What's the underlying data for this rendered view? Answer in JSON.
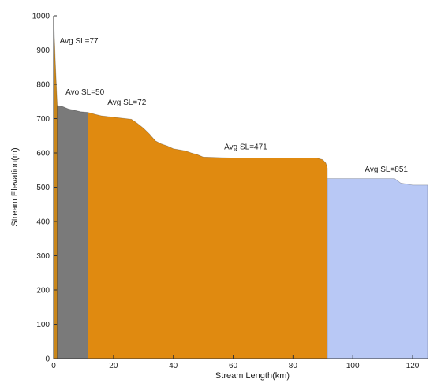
{
  "chart_data": {
    "type": "area",
    "xlabel": "Stream Length(km)",
    "ylabel": "Stream Elevation(m)",
    "xlim": [
      0,
      125
    ],
    "ylim": [
      0,
      1000
    ],
    "x_ticks": [
      0,
      20,
      40,
      60,
      80,
      100,
      120
    ],
    "y_ticks": [
      0,
      100,
      200,
      300,
      400,
      500,
      600,
      700,
      800,
      900,
      1000
    ],
    "grid": false,
    "colors": {
      "segment_1": "#c9861a",
      "segment_2": "#7a7a7a",
      "segment_3": "#e08a10",
      "segment_4": "#b8c8f5",
      "axis": "#333333"
    },
    "segments": [
      {
        "color_key": "segment_1",
        "points": [
          [
            0,
            1000
          ],
          [
            0.3,
            930
          ],
          [
            0.6,
            860
          ],
          [
            0.9,
            800
          ],
          [
            1.2,
            740
          ]
        ]
      },
      {
        "color_key": "segment_2",
        "points": [
          [
            1.2,
            738
          ],
          [
            3,
            735
          ],
          [
            5,
            728
          ],
          [
            7,
            724
          ],
          [
            9,
            720
          ],
          [
            11.5,
            718
          ]
        ]
      },
      {
        "color_key": "segment_3",
        "points": [
          [
            11.5,
            718
          ],
          [
            14,
            712
          ],
          [
            16,
            708
          ],
          [
            18,
            706
          ],
          [
            22,
            702
          ],
          [
            26,
            698
          ],
          [
            28,
            686
          ],
          [
            30,
            672
          ],
          [
            32,
            655
          ],
          [
            34,
            635
          ],
          [
            36,
            626
          ],
          [
            38,
            620
          ],
          [
            40,
            612
          ],
          [
            44,
            606
          ],
          [
            46,
            600
          ],
          [
            48,
            595
          ],
          [
            50,
            588
          ],
          [
            60,
            585
          ],
          [
            70,
            585
          ],
          [
            80,
            585
          ],
          [
            88,
            585
          ],
          [
            90,
            580
          ],
          [
            91,
            570
          ],
          [
            91.5,
            555
          ]
        ]
      },
      {
        "color_key": "segment_4",
        "points": [
          [
            91.5,
            525
          ],
          [
            100,
            525
          ],
          [
            114,
            525
          ],
          [
            116,
            512
          ],
          [
            120,
            506
          ],
          [
            125,
            506
          ]
        ]
      }
    ],
    "annotations": [
      {
        "text": "Avg SL=77",
        "x": 2,
        "y": 920
      },
      {
        "text": "Avo SL=50",
        "x": 4,
        "y": 770
      },
      {
        "text": "Avg SL=72",
        "x": 18,
        "y": 740
      },
      {
        "text": "Avg SL=471",
        "x": 57,
        "y": 610
      },
      {
        "text": "Avg SL=851",
        "x": 104,
        "y": 545
      }
    ]
  }
}
